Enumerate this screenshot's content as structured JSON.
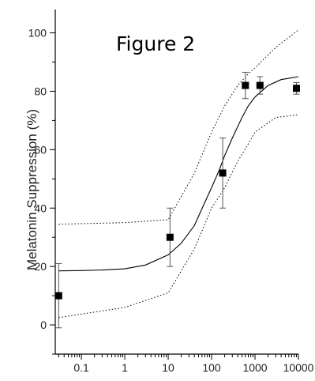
{
  "chart_data": {
    "type": "scatter",
    "title": "Figure 2",
    "xlabel": "",
    "ylabel": "Melatonin Suppression (%)",
    "x_scale": "log",
    "xlim": [
      0.025,
      10000
    ],
    "ylim": [
      -10,
      108
    ],
    "x_ticks": [
      0.1,
      1,
      10,
      100,
      1000,
      10000
    ],
    "x_tick_labels": [
      "0.1",
      "1",
      "10",
      "100",
      "1000",
      "10000"
    ],
    "y_ticks": [
      0,
      20,
      40,
      60,
      80,
      100
    ],
    "y_tick_labels": [
      "0",
      "20",
      "40",
      "60",
      "80",
      "100"
    ],
    "grid": false,
    "legend": "none",
    "series": [
      {
        "kind": "points",
        "marker": "square",
        "color": "#000000",
        "x": [
          0.03,
          11,
          180,
          600,
          1300,
          9000
        ],
        "y": [
          10,
          30,
          52,
          82,
          82,
          81
        ],
        "yerr": [
          11,
          10,
          12,
          4.5,
          3,
          2
        ]
      },
      {
        "kind": "fit",
        "style": "solid",
        "color": "#000000",
        "x": [
          0.03,
          0.1,
          0.3,
          1,
          3,
          10,
          20,
          40,
          70,
          100,
          150,
          200,
          300,
          500,
          700,
          1000,
          2000,
          4000,
          10000
        ],
        "y": [
          18.5,
          18.6,
          18.8,
          19.2,
          20.5,
          24,
          28,
          34,
          42,
          47,
          53,
          58,
          64,
          71,
          75,
          78,
          82,
          84,
          85
        ]
      },
      {
        "kind": "confidence-upper",
        "style": "dotted",
        "color": "#000000",
        "x": [
          0.03,
          1,
          10,
          40,
          100,
          200,
          400,
          700,
          1000,
          3000,
          10000
        ],
        "y": [
          34.5,
          35,
          36,
          52,
          66,
          75,
          82,
          86,
          88,
          95,
          101
        ]
      },
      {
        "kind": "confidence-lower",
        "style": "dotted",
        "color": "#000000",
        "x": [
          0.03,
          1,
          10,
          40,
          100,
          200,
          400,
          700,
          1000,
          3000,
          10000
        ],
        "y": [
          2.5,
          6,
          11,
          26,
          40,
          47,
          56,
          62,
          66,
          71,
          72
        ]
      }
    ]
  }
}
